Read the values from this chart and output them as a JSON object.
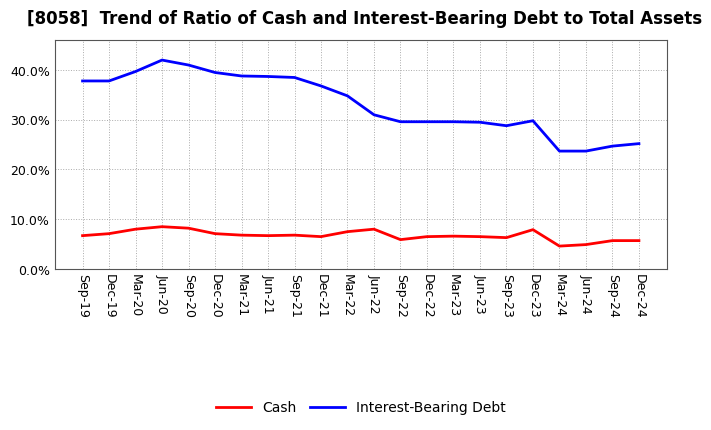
{
  "title": "[8058]  Trend of Ratio of Cash and Interest-Bearing Debt to Total Assets",
  "x_labels": [
    "Sep-19",
    "Dec-19",
    "Mar-20",
    "Jun-20",
    "Sep-20",
    "Dec-20",
    "Mar-21",
    "Jun-21",
    "Sep-21",
    "Dec-21",
    "Mar-22",
    "Jun-22",
    "Sep-22",
    "Dec-22",
    "Mar-23",
    "Jun-23",
    "Sep-23",
    "Dec-23",
    "Mar-24",
    "Jun-24",
    "Sep-24",
    "Dec-24"
  ],
  "cash": [
    0.067,
    0.071,
    0.08,
    0.085,
    0.082,
    0.071,
    0.068,
    0.067,
    0.068,
    0.065,
    0.075,
    0.08,
    0.059,
    0.065,
    0.066,
    0.065,
    0.063,
    0.079,
    0.046,
    0.049,
    0.057,
    0.057
  ],
  "interest_bearing_debt": [
    0.378,
    0.378,
    0.397,
    0.42,
    0.41,
    0.395,
    0.388,
    0.387,
    0.385,
    0.368,
    0.348,
    0.31,
    0.296,
    0.296,
    0.296,
    0.295,
    0.288,
    0.298,
    0.237,
    0.237,
    0.247,
    0.252
  ],
  "cash_color": "#ff0000",
  "debt_color": "#0000ff",
  "background_color": "#ffffff",
  "grid_color": "#aaaaaa",
  "ylim": [
    0.0,
    0.46
  ],
  "yticks": [
    0.0,
    0.1,
    0.2,
    0.3,
    0.4
  ],
  "legend_cash": "Cash",
  "legend_debt": "Interest-Bearing Debt",
  "title_fontsize": 12,
  "axis_fontsize": 9,
  "legend_fontsize": 10,
  "line_width": 2.0
}
